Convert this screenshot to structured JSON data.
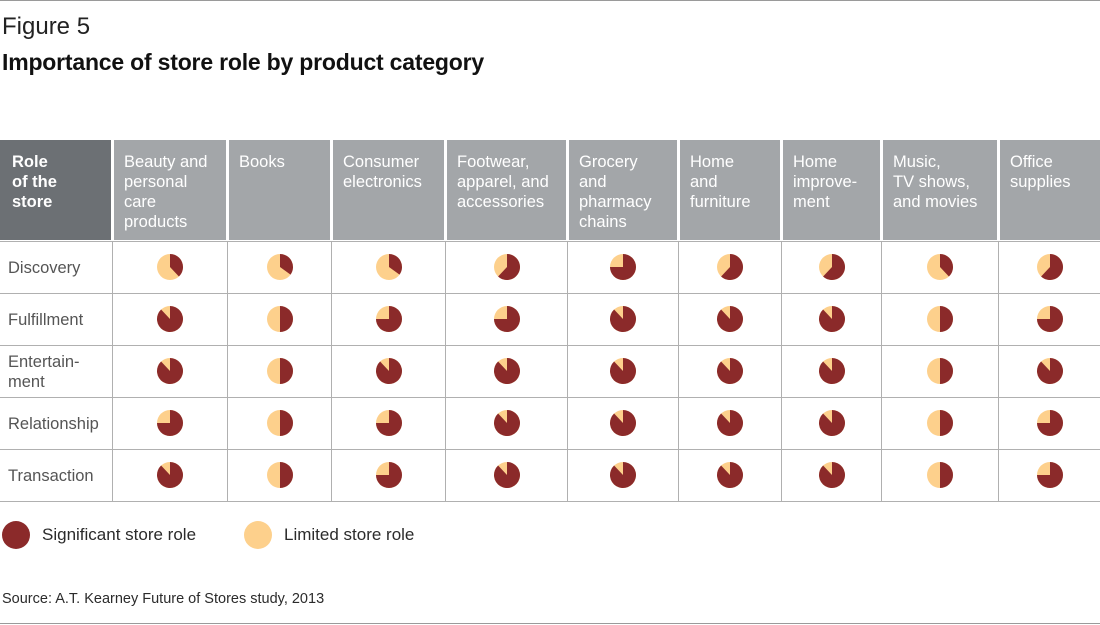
{
  "figure_label": "Figure 5",
  "title": "Importance of store role by product category",
  "source": "Source: A.T. Kearney Future of Stores study, 2013",
  "colors": {
    "significant": "#8b2a2a",
    "limited": "#fdd08c",
    "header": "#a3a6a9",
    "header_first": "#6c7074"
  },
  "legend": {
    "significant": "Significant store role",
    "limited": "Limited store role"
  },
  "chart_data": {
    "type": "table",
    "corner_label": "Role\nof the\nstore",
    "columns": [
      "Beauty and\npersonal\ncare\nproducts",
      "Books",
      "Consumer\nelectronics",
      "Footwear,\napparel, and\naccessories",
      "Grocery\nand\npharmacy\nchains",
      "Home\nand\nfurniture",
      "Home\nimprove-\nment",
      "Music,\nTV shows,\nand movies",
      "Office\nsupplies"
    ],
    "rows": [
      "Discovery",
      "Fulfillment",
      "Entertain-\nment",
      "Relationship",
      "Transaction"
    ],
    "significant_share": [
      [
        0.38,
        0.35,
        0.35,
        0.62,
        0.75,
        0.62,
        0.62,
        0.38,
        0.62
      ],
      [
        0.88,
        0.5,
        0.75,
        0.75,
        0.88,
        0.88,
        0.88,
        0.5,
        0.75
      ],
      [
        0.88,
        0.5,
        0.88,
        0.88,
        0.88,
        0.88,
        0.88,
        0.5,
        0.88
      ],
      [
        0.75,
        0.5,
        0.75,
        0.88,
        0.88,
        0.88,
        0.88,
        0.5,
        0.75
      ],
      [
        0.88,
        0.5,
        0.75,
        0.88,
        0.88,
        0.88,
        0.88,
        0.5,
        0.75
      ]
    ]
  }
}
